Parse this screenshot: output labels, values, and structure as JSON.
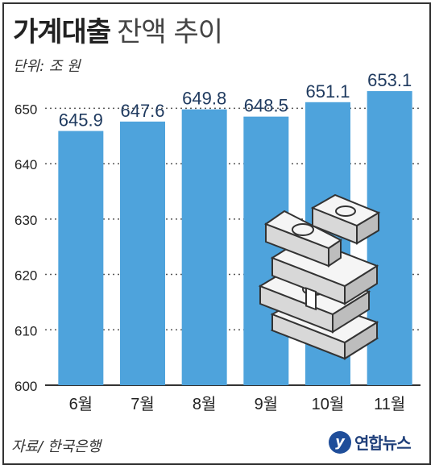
{
  "header": {
    "title_bold": "가계대출",
    "title_light": "잔액 추이",
    "unit": "단위: 조 원"
  },
  "footer": {
    "source": "자료/ 한국은행",
    "logo_mark": "y",
    "logo_text": "연합뉴스"
  },
  "colors": {
    "bar": "#4ea3dc",
    "grid": "#555555",
    "text": "#222222"
  },
  "chart_data": {
    "type": "bar",
    "title": "가계대출 잔액 추이",
    "categories": [
      "6월",
      "7월",
      "8월",
      "9월",
      "10월",
      "11월"
    ],
    "values": [
      645.9,
      647.6,
      649.8,
      648.5,
      651.1,
      653.1
    ],
    "value_labels": [
      "645.9",
      "647.6",
      "649.8",
      "648.5",
      "651.1",
      "653.1"
    ],
    "ylim": [
      600,
      655
    ],
    "yticks": [
      600,
      610,
      620,
      630,
      640,
      650
    ],
    "grid": true,
    "illustration": "money-stack-icon"
  }
}
